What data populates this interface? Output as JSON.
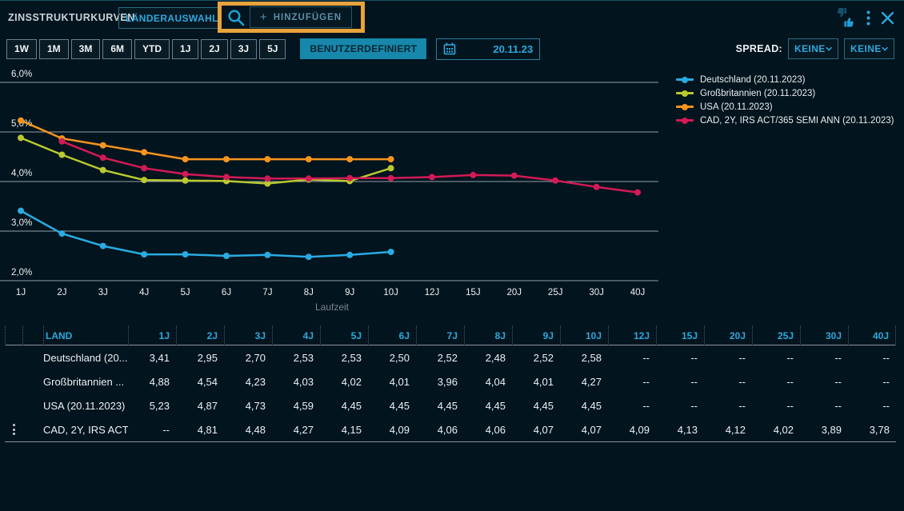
{
  "header": {
    "title": "ZINSSTRUKTURKURVEN",
    "country_select": "LÄNDERAUSWAHL",
    "add_plus": "+",
    "add_button": "HINZUFÜGEN"
  },
  "annotation": {
    "color": "#E8A33D"
  },
  "toolbar": {
    "ranges": [
      "1W",
      "1M",
      "3M",
      "6M",
      "YTD",
      "1J",
      "2J",
      "3J",
      "5J"
    ],
    "custom_button": "BENUTZERDEFINIERT",
    "date": "20.11.23",
    "spread_label": "SPREAD:",
    "spread_options": [
      "KEINE",
      "KEINE"
    ]
  },
  "chart_data": {
    "type": "line",
    "categories": [
      "1J",
      "2J",
      "3J",
      "4J",
      "5J",
      "6J",
      "7J",
      "8J",
      "9J",
      "10J",
      "12J",
      "15J",
      "20J",
      "25J",
      "30J",
      "40J"
    ],
    "xlabel": "Laufzeit",
    "ylim": [
      2.0,
      6.0
    ],
    "ytick_values": [
      6.0,
      5.0,
      4.0,
      3.0,
      2.0
    ],
    "ytick_labels": [
      "6,0%",
      "5,0%",
      "4,0%",
      "3,0%",
      "2,0%"
    ],
    "grid": "horizontal",
    "legend_position": "right",
    "series": [
      {
        "name": "Deutschland (20.11.2023)",
        "color": "#29ABE2",
        "values": [
          3.41,
          2.95,
          2.7,
          2.53,
          2.53,
          2.5,
          2.52,
          2.48,
          2.52,
          2.58,
          null,
          null,
          null,
          null,
          null,
          null
        ]
      },
      {
        "name": "Großbritannien (20.11.2023)",
        "color": "#B9C92F",
        "values": [
          4.88,
          4.54,
          4.23,
          4.03,
          4.02,
          4.01,
          3.96,
          4.04,
          4.01,
          4.27,
          null,
          null,
          null,
          null,
          null,
          null
        ]
      },
      {
        "name": "USA (20.11.2023)",
        "color": "#F7941E",
        "values": [
          5.23,
          4.87,
          4.73,
          4.59,
          4.45,
          4.45,
          4.45,
          4.45,
          4.45,
          4.45,
          null,
          null,
          null,
          null,
          null,
          null
        ]
      },
      {
        "name": "CAD, 2Y, IRS ACT/365 SEMI ANN (20.11.2023)",
        "color": "#D31A56",
        "values": [
          null,
          4.81,
          4.48,
          4.27,
          4.15,
          4.09,
          4.06,
          4.06,
          4.07,
          4.07,
          4.09,
          4.13,
          4.12,
          4.02,
          3.89,
          3.78
        ]
      }
    ]
  },
  "table": {
    "land_header": "LAND",
    "tenor_headers": [
      "1J",
      "2J",
      "3J",
      "4J",
      "5J",
      "6J",
      "7J",
      "8J",
      "9J",
      "10J",
      "12J",
      "15J",
      "20J",
      "25J",
      "30J",
      "40J"
    ],
    "rows": [
      {
        "label": "Deutschland (20...",
        "color": "#29ABE2",
        "has_menu": false,
        "values": [
          "3,41",
          "2,95",
          "2,70",
          "2,53",
          "2,53",
          "2,50",
          "2,52",
          "2,48",
          "2,52",
          "2,58",
          "--",
          "--",
          "--",
          "--",
          "--",
          "--"
        ]
      },
      {
        "label": "Großbritannien ...",
        "color": "#B9C92F",
        "has_menu": false,
        "values": [
          "4,88",
          "4,54",
          "4,23",
          "4,03",
          "4,02",
          "4,01",
          "3,96",
          "4,04",
          "4,01",
          "4,27",
          "--",
          "--",
          "--",
          "--",
          "--",
          "--"
        ]
      },
      {
        "label": "USA (20.11.2023)",
        "color": "#F7941E",
        "has_menu": false,
        "values": [
          "5,23",
          "4,87",
          "4,73",
          "4,59",
          "4,45",
          "4,45",
          "4,45",
          "4,45",
          "4,45",
          "4,45",
          "--",
          "--",
          "--",
          "--",
          "--",
          "--"
        ]
      },
      {
        "label": "CAD, 2Y, IRS ACT...",
        "color": "#D31A56",
        "has_menu": true,
        "values": [
          "--",
          "4,81",
          "4,48",
          "4,27",
          "4,15",
          "4,09",
          "4,06",
          "4,06",
          "4,07",
          "4,07",
          "4,09",
          "4,13",
          "4,12",
          "4,02",
          "3,89",
          "3,78"
        ]
      }
    ]
  }
}
